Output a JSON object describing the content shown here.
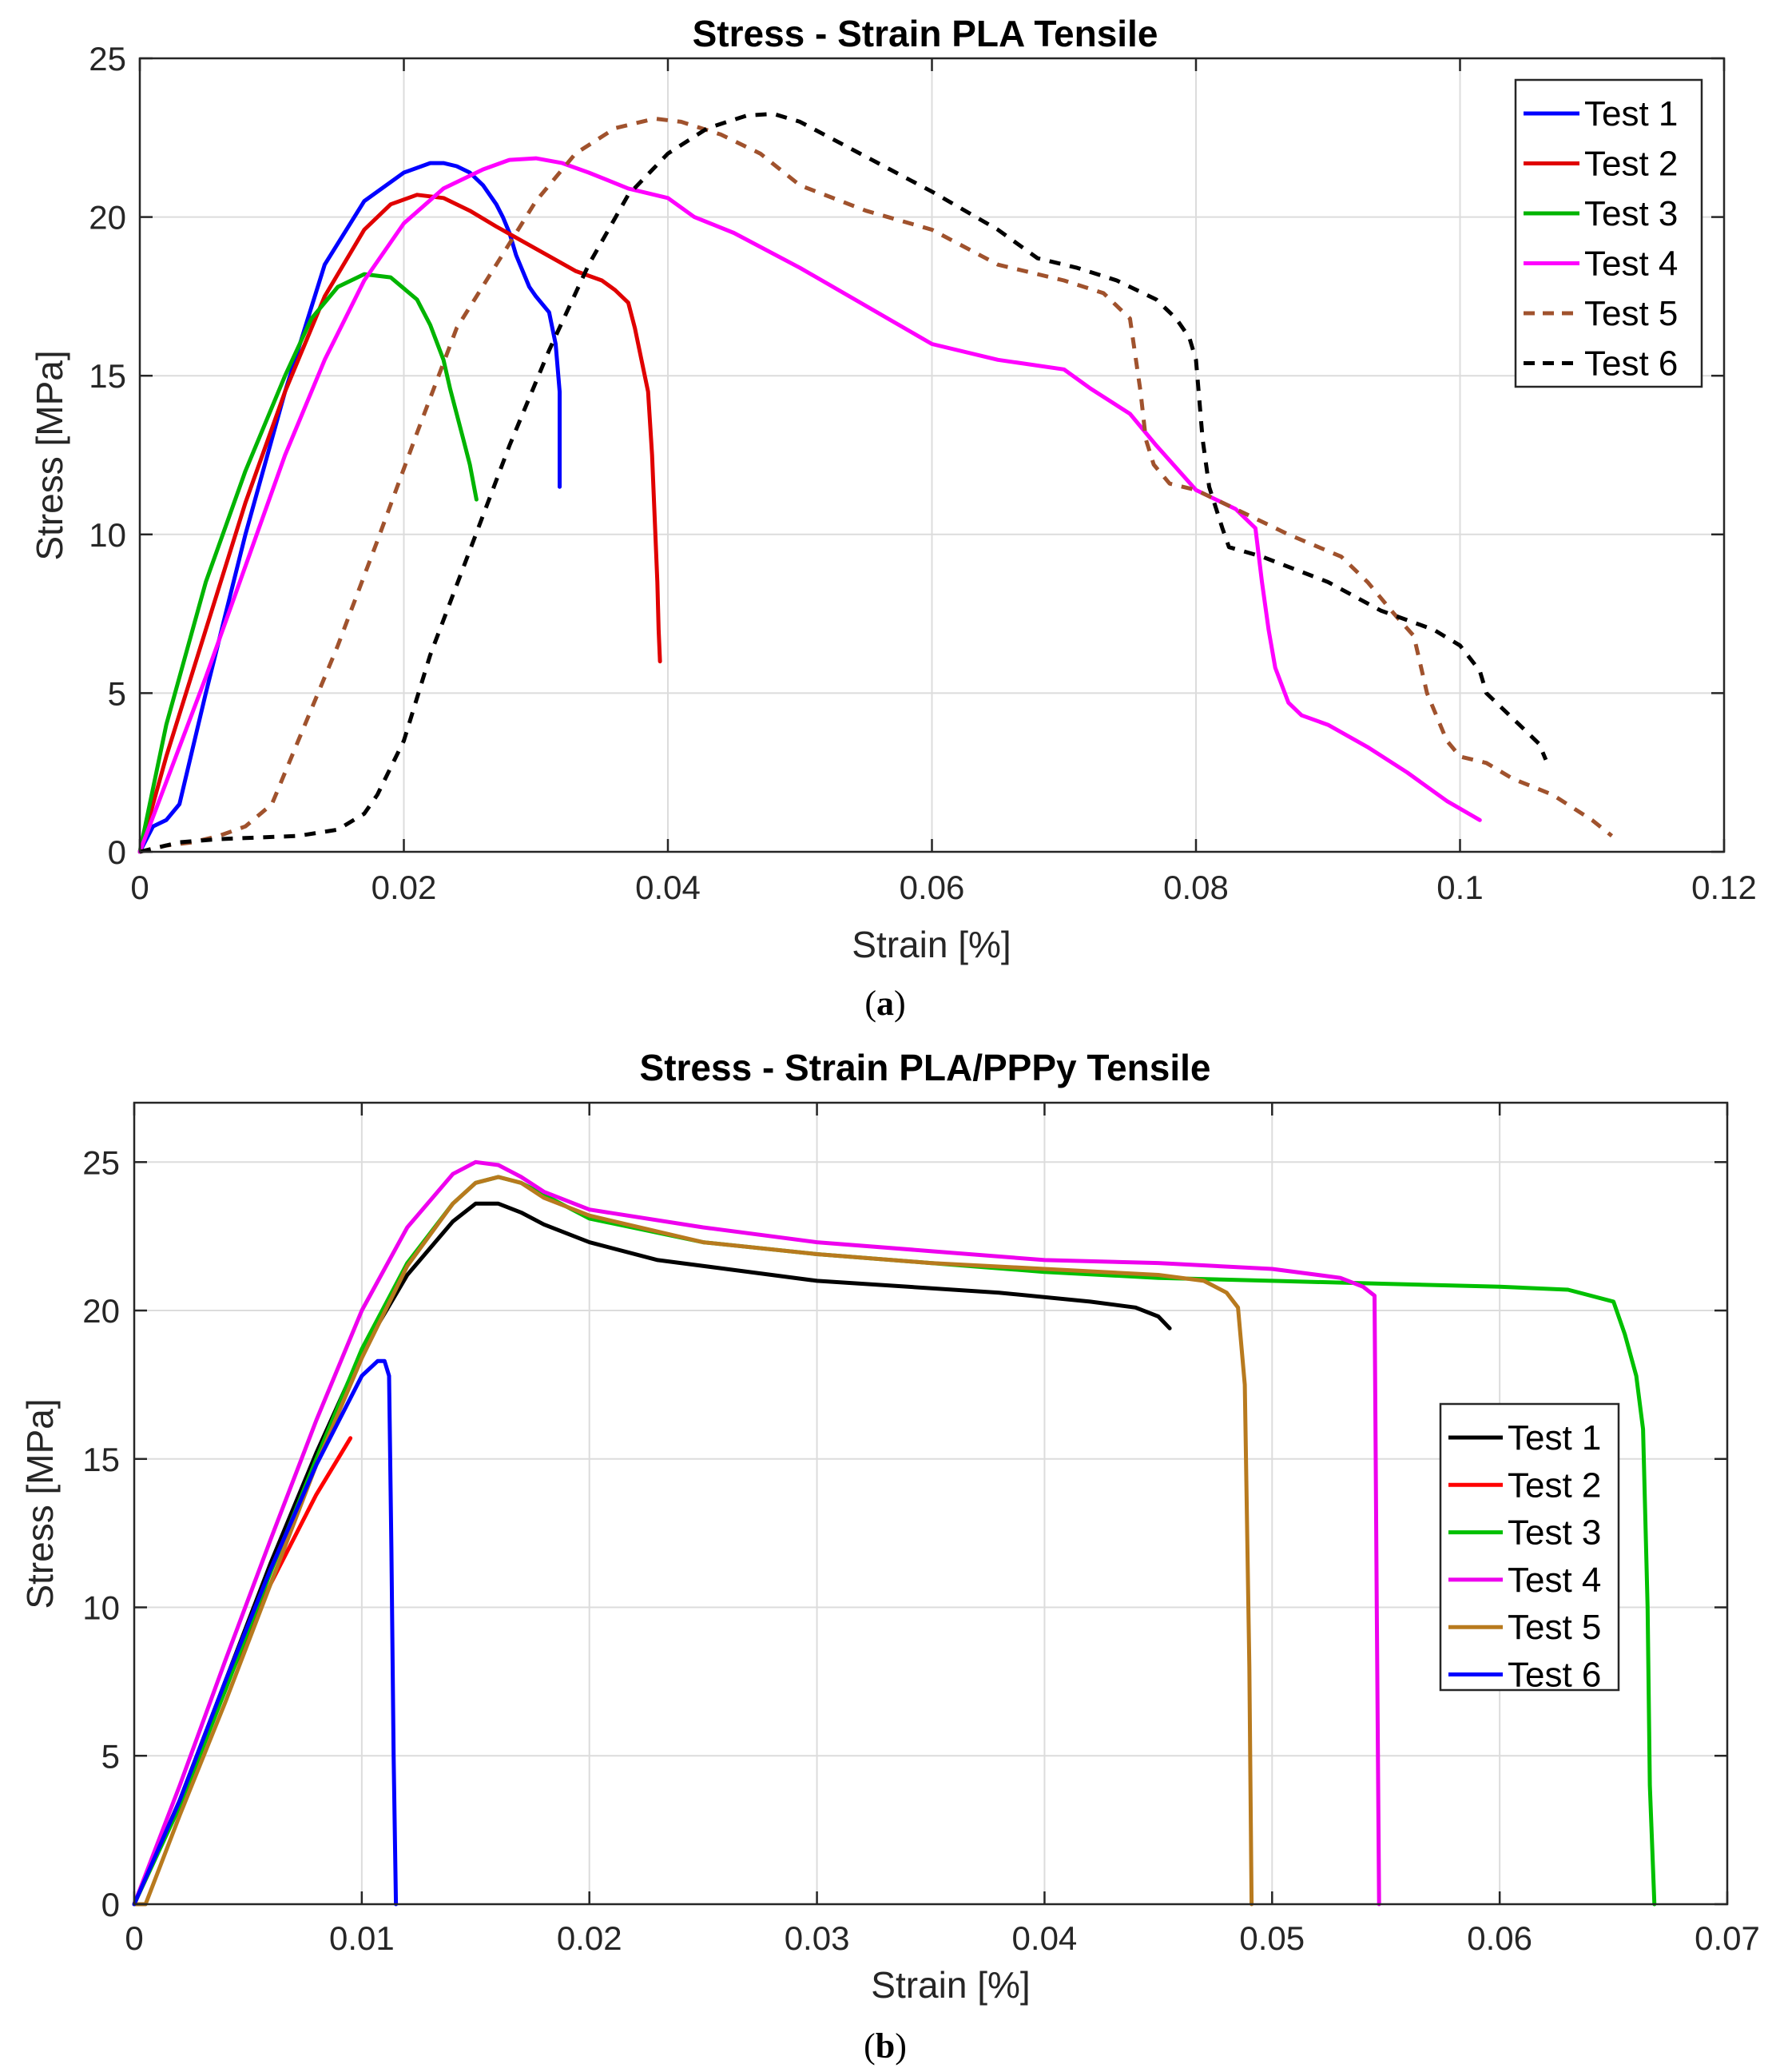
{
  "chart_data": [
    {
      "type": "line",
      "title": "Stress - Strain PLA Tensile",
      "xlabel": "Strain [%]",
      "ylabel": "Stress [MPa]",
      "caption_letter": "a",
      "xlim": [
        0,
        0.12
      ],
      "ylim": [
        0,
        25
      ],
      "xticks": [
        "0",
        "0.02",
        "0.04",
        "0.06",
        "0.08",
        "0.1",
        "0.12"
      ],
      "xtick_values": [
        0,
        0.02,
        0.04,
        0.06,
        0.08,
        0.1,
        0.12
      ],
      "yticks": [
        "0",
        "5",
        "10",
        "15",
        "20",
        "25"
      ],
      "ytick_values": [
        0,
        5,
        10,
        15,
        20,
        25
      ],
      "grid": true,
      "legend_position": "top-right",
      "series": [
        {
          "name": "Test 1",
          "color": "#0000ff",
          "dashed": false,
          "x": [
            0,
            0.001,
            0.002,
            0.003,
            0.005,
            0.008,
            0.011,
            0.014,
            0.017,
            0.02,
            0.022,
            0.023,
            0.024,
            0.025,
            0.026,
            0.027,
            0.0275,
            0.028,
            0.0285,
            0.029,
            0.0295,
            0.03,
            0.031,
            0.0315,
            0.0318,
            0.0318
          ],
          "y": [
            0,
            0.8,
            1.0,
            1.5,
            5,
            10,
            14.5,
            18.5,
            20.5,
            21.4,
            21.7,
            21.7,
            21.6,
            21.4,
            21.0,
            20.4,
            20.0,
            19.5,
            18.8,
            18.3,
            17.8,
            17.5,
            17.0,
            16.0,
            14.5,
            11.5
          ]
        },
        {
          "name": "Test 2",
          "color": "#e00000",
          "dashed": false,
          "x": [
            0,
            0.002,
            0.005,
            0.008,
            0.011,
            0.014,
            0.017,
            0.019,
            0.021,
            0.023,
            0.025,
            0.027,
            0.03,
            0.033,
            0.035,
            0.036,
            0.037,
            0.0375,
            0.038,
            0.0385,
            0.0388,
            0.039,
            0.0392,
            0.0393,
            0.0394
          ],
          "y": [
            0,
            3,
            7,
            11,
            14.5,
            17.5,
            19.6,
            20.4,
            20.7,
            20.6,
            20.2,
            19.7,
            19.0,
            18.3,
            18.0,
            17.7,
            17.3,
            16.5,
            15.5,
            14.5,
            12.5,
            10.5,
            8.5,
            7,
            6
          ]
        },
        {
          "name": "Test 3",
          "color": "#00b400",
          "dashed": false,
          "x": [
            0,
            0.002,
            0.005,
            0.008,
            0.011,
            0.013,
            0.015,
            0.017,
            0.019,
            0.021,
            0.022,
            0.023,
            0.0235,
            0.024,
            0.0245,
            0.025,
            0.0255
          ],
          "y": [
            0,
            4,
            8.5,
            12,
            15,
            16.8,
            17.8,
            18.2,
            18.1,
            17.4,
            16.6,
            15.5,
            14.6,
            13.8,
            13,
            12.2,
            11.1
          ]
        },
        {
          "name": "Test 4",
          "color": "#ff00ff",
          "dashed": false,
          "x": [
            0,
            0.002,
            0.005,
            0.008,
            0.011,
            0.014,
            0.017,
            0.02,
            0.023,
            0.026,
            0.028,
            0.03,
            0.032,
            0.034,
            0.037,
            0.04,
            0.042,
            0.045,
            0.05,
            0.055,
            0.06,
            0.065,
            0.07,
            0.072,
            0.075,
            0.077,
            0.08,
            0.083,
            0.0845,
            0.085,
            0.0855,
            0.086,
            0.087,
            0.088,
            0.09,
            0.093,
            0.096,
            0.099,
            0.1015
          ],
          "y": [
            0,
            2.2,
            5.5,
            9,
            12.5,
            15.5,
            18,
            19.8,
            20.9,
            21.5,
            21.8,
            21.85,
            21.7,
            21.4,
            20.9,
            20.6,
            20.0,
            19.5,
            18.4,
            17.2,
            16.0,
            15.5,
            15.2,
            14.6,
            13.8,
            12.8,
            11.4,
            10.8,
            10.2,
            8.5,
            7,
            5.8,
            4.7,
            4.3,
            4.0,
            3.3,
            2.5,
            1.6,
            1.0
          ]
        },
        {
          "name": "Test 5",
          "color": "#a0522d",
          "dashed": true,
          "x": [
            0,
            0.002,
            0.004,
            0.006,
            0.008,
            0.01,
            0.012,
            0.015,
            0.018,
            0.021,
            0.024,
            0.027,
            0.03,
            0.033,
            0.036,
            0.039,
            0.041,
            0.044,
            0.047,
            0.05,
            0.055,
            0.06,
            0.065,
            0.07,
            0.073,
            0.075,
            0.0758,
            0.0762,
            0.0768,
            0.078,
            0.08,
            0.083,
            0.087,
            0.091,
            0.093,
            0.095,
            0.0965,
            0.0975,
            0.099,
            0.1,
            0.102,
            0.104,
            0.107,
            0.11,
            0.1115
          ],
          "y": [
            0,
            0.2,
            0.3,
            0.5,
            0.8,
            1.5,
            3.5,
            6.5,
            9.8,
            13.2,
            16.5,
            18.5,
            20.5,
            22.0,
            22.8,
            23.1,
            23.0,
            22.6,
            22.0,
            21.0,
            20.2,
            19.6,
            18.5,
            18.0,
            17.6,
            16.8,
            14.5,
            13,
            12.2,
            11.6,
            11.4,
            10.8,
            10.0,
            9.3,
            8.5,
            7.5,
            6.8,
            5,
            3.5,
            3.0,
            2.8,
            2.3,
            1.8,
            1.0,
            0.5
          ]
        },
        {
          "name": "Test 6",
          "color": "#000000",
          "dashed": true,
          "x": [
            0,
            0.003,
            0.006,
            0.009,
            0.012,
            0.015,
            0.017,
            0.018,
            0.02,
            0.022,
            0.025,
            0.028,
            0.031,
            0.034,
            0.037,
            0.04,
            0.043,
            0.046,
            0.048,
            0.05,
            0.055,
            0.06,
            0.065,
            0.068,
            0.071,
            0.074,
            0.077,
            0.0785,
            0.0795,
            0.08,
            0.0805,
            0.081,
            0.082,
            0.0825,
            0.085,
            0.09,
            0.094,
            0.098,
            0.1,
            0.1015,
            0.102,
            0.1035,
            0.1045,
            0.106,
            0.1065
          ],
          "y": [
            0,
            0.3,
            0.4,
            0.45,
            0.5,
            0.7,
            1.2,
            1.8,
            3.5,
            6.2,
            9.5,
            12.8,
            15.8,
            18.5,
            20.7,
            22.0,
            22.8,
            23.2,
            23.25,
            23.0,
            21.9,
            20.8,
            19.6,
            18.7,
            18.4,
            18.0,
            17.4,
            16.8,
            16.2,
            15.5,
            13,
            11.5,
            10.2,
            9.6,
            9.3,
            8.5,
            7.6,
            7.0,
            6.5,
            5.7,
            5.0,
            4.4,
            4.0,
            3.4,
            2.9
          ]
        }
      ]
    },
    {
      "type": "line",
      "title": "Stress - Strain PLA/PPPy Tensile",
      "xlabel": "Strain [%]",
      "ylabel": "Stress [MPa]",
      "caption_letter": "b",
      "xlim": [
        0,
        0.07
      ],
      "ylim": [
        0,
        27
      ],
      "xticks": [
        "0",
        "0.01",
        "0.02",
        "0.03",
        "0.04",
        "0.05",
        "0.06",
        "0.07"
      ],
      "xtick_values": [
        0,
        0.01,
        0.02,
        0.03,
        0.04,
        0.05,
        0.06,
        0.07
      ],
      "yticks": [
        "0",
        "5",
        "10",
        "15",
        "20",
        "25"
      ],
      "ytick_values": [
        0,
        5,
        10,
        15,
        20,
        25
      ],
      "grid": true,
      "legend_position": "middle-right",
      "series": [
        {
          "name": "Test 1",
          "color": "#000000",
          "dashed": false,
          "x": [
            0,
            0.002,
            0.004,
            0.006,
            0.008,
            0.01,
            0.012,
            0.014,
            0.015,
            0.016,
            0.017,
            0.018,
            0.02,
            0.023,
            0.026,
            0.03,
            0.034,
            0.038,
            0.042,
            0.044,
            0.045,
            0.0455
          ],
          "y": [
            0,
            3.5,
            7.5,
            11.5,
            15.2,
            18.6,
            21.2,
            23.0,
            23.6,
            23.6,
            23.3,
            22.9,
            22.3,
            21.7,
            21.4,
            21.0,
            20.8,
            20.6,
            20.3,
            20.1,
            19.8,
            19.4
          ]
        },
        {
          "name": "Test 2",
          "color": "#ff0000",
          "dashed": false,
          "x": [
            0,
            0.002,
            0.004,
            0.006,
            0.008,
            0.0095
          ],
          "y": [
            0,
            3.5,
            7.3,
            10.8,
            13.8,
            15.7
          ]
        },
        {
          "name": "Test 3",
          "color": "#00c000",
          "dashed": false,
          "x": [
            0,
            0.002,
            0.004,
            0.006,
            0.008,
            0.01,
            0.012,
            0.014,
            0.015,
            0.016,
            0.017,
            0.018,
            0.02,
            0.025,
            0.03,
            0.035,
            0.04,
            0.045,
            0.05,
            0.055,
            0.06,
            0.063,
            0.065,
            0.0655,
            0.066,
            0.0663,
            0.0665,
            0.0666,
            0.0668
          ],
          "y": [
            0,
            3.3,
            7.2,
            11.2,
            15.0,
            18.7,
            21.6,
            23.6,
            24.3,
            24.5,
            24.3,
            23.9,
            23.1,
            22.3,
            21.9,
            21.6,
            21.3,
            21.1,
            21.0,
            20.9,
            20.8,
            20.7,
            20.3,
            19.2,
            17.8,
            16,
            10,
            4,
            0
          ]
        },
        {
          "name": "Test 4",
          "color": "#ee00ee",
          "dashed": false,
          "x": [
            0,
            0.002,
            0.004,
            0.006,
            0.008,
            0.01,
            0.012,
            0.014,
            0.015,
            0.016,
            0.017,
            0.018,
            0.02,
            0.025,
            0.03,
            0.035,
            0.04,
            0.045,
            0.05,
            0.053,
            0.054,
            0.0545,
            0.0546,
            0.0547
          ],
          "y": [
            0,
            4.0,
            8.2,
            12.3,
            16.3,
            20.0,
            22.8,
            24.6,
            25.0,
            24.9,
            24.5,
            24.0,
            23.4,
            22.8,
            22.3,
            22.0,
            21.7,
            21.6,
            21.4,
            21.1,
            20.8,
            20.5,
            10,
            0
          ]
        },
        {
          "name": "Test 5",
          "color": "#b87a1e",
          "dashed": false,
          "x": [
            0,
            0.0005,
            0.002,
            0.004,
            0.006,
            0.008,
            0.01,
            0.012,
            0.014,
            0.015,
            0.016,
            0.017,
            0.018,
            0.02,
            0.025,
            0.03,
            0.035,
            0.04,
            0.045,
            0.047,
            0.048,
            0.0485,
            0.0488,
            0.049,
            0.0491
          ],
          "y": [
            0,
            0,
            3.0,
            6.8,
            10.8,
            14.8,
            18.4,
            21.5,
            23.6,
            24.3,
            24.5,
            24.3,
            23.8,
            23.2,
            22.3,
            21.9,
            21.6,
            21.4,
            21.2,
            21.0,
            20.6,
            20.1,
            17.5,
            8,
            0
          ]
        },
        {
          "name": "Test 6",
          "color": "#0000ff",
          "dashed": false,
          "x": [
            0,
            0.002,
            0.004,
            0.006,
            0.008,
            0.01,
            0.0107,
            0.011,
            0.0112,
            0.0113,
            0.0114,
            0.0115
          ],
          "y": [
            0,
            3.5,
            7.5,
            11.3,
            14.8,
            17.8,
            18.3,
            18.3,
            17.8,
            12,
            5,
            0
          ]
        }
      ]
    }
  ]
}
